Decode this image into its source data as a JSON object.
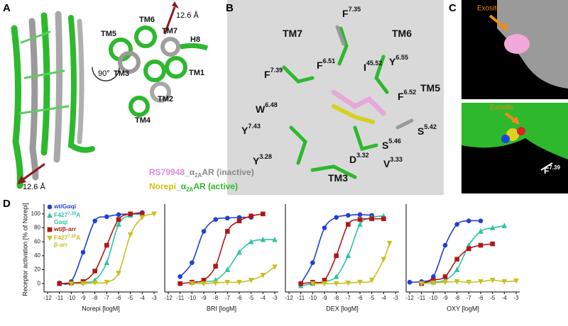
{
  "panels": {
    "A": {
      "label": "A",
      "distance_side": "12.6 Å",
      "rotation": "90°",
      "distance_top": "12.6 Å",
      "helices": [
        "TM6",
        "TM7",
        "H8",
        "TM5",
        "TM1",
        "TM3",
        "TM2",
        "TM4"
      ],
      "legend": [
        [
          "RS79948",
          "_α",
          "2A",
          "AR (inactive)"
        ],
        [
          "Norepi",
          "_α",
          "2A",
          "AR (active)"
        ]
      ]
    },
    "B": {
      "label": "B",
      "residues": [
        [
          "F",
          "7.35"
        ],
        [
          "TM7"
        ],
        [
          "TM6"
        ],
        [
          "F",
          "7.39"
        ],
        [
          "F",
          "6.51"
        ],
        [
          "I",
          "45.52"
        ],
        [
          "Y",
          "6.55"
        ],
        [
          "F",
          "6.52"
        ],
        [
          "TM5"
        ],
        [
          "W",
          "6.48"
        ],
        [
          "Y",
          "7.43"
        ],
        [
          "Y",
          "3.28"
        ],
        [
          "D",
          "3.32"
        ],
        [
          "V",
          "3.33"
        ],
        [
          "S",
          "5.46"
        ],
        [
          "S",
          "5.42"
        ],
        [
          "TM3"
        ]
      ]
    },
    "C": {
      "label": "C",
      "exosite_top": "Exosite",
      "exosite_bottom": "Exosite",
      "residue": [
        "F",
        "7.39"
      ]
    },
    "D": {
      "label": "D"
    }
  },
  "chart_data": [
    {
      "type": "dose_response",
      "ylabel": "Receptor activation [% of Norepi]",
      "xlabel": "Norepi [logM]",
      "xlim": [
        -12.3,
        -2.7
      ],
      "xticks": [
        -12,
        -11,
        -10,
        -9,
        -8,
        -7,
        -6,
        -5,
        -4,
        -3
      ],
      "ylim": [
        -12,
        110
      ],
      "yticks": [
        0,
        20,
        40,
        60,
        80,
        100
      ],
      "series": [
        {
          "name": [
            "wt/Gαqi"
          ],
          "color": "#1f3fd6",
          "marker": "circle",
          "x": [
            -11,
            -10,
            -9,
            -8,
            -7,
            -6,
            -5,
            -4
          ],
          "values": [
            1,
            3,
            45,
            90,
            96,
            99,
            100,
            102
          ]
        },
        {
          "name": [
            "F427",
            "7.39",
            "A",
            "Gαqi"
          ],
          "color": "#2ec4a0",
          "marker": "triangle-up",
          "x": [
            -11,
            -10,
            -9,
            -8,
            -7,
            -6,
            -5,
            -4
          ],
          "values": [
            0,
            1,
            2,
            5,
            30,
            85,
            98,
            100
          ]
        },
        {
          "name": [
            "wt/β-arr"
          ],
          "color": "#b01818",
          "marker": "square",
          "x": [
            -11,
            -10,
            -9,
            -8,
            -7,
            -6,
            -5,
            -4
          ],
          "values": [
            0,
            1,
            3,
            18,
            55,
            92,
            100,
            100
          ]
        },
        {
          "name": [
            "F427",
            "7.39",
            "A",
            "β-arr"
          ],
          "color": "#c8c020",
          "marker": "triangle-down",
          "x": [
            -10,
            -9,
            -8,
            -7,
            -6,
            -5,
            -4,
            -3
          ],
          "values": [
            0,
            0,
            1,
            2,
            15,
            70,
            95,
            100
          ]
        }
      ]
    },
    {
      "type": "dose_response",
      "xlabel": "BRI [logM]",
      "xlim": [
        -12.3,
        -2.7
      ],
      "xticks": [
        -12,
        -11,
        -10,
        -9,
        -8,
        -7,
        -6,
        -5,
        -4,
        -3
      ],
      "ylim": [
        -12,
        110
      ],
      "series": [
        {
          "color": "#1f3fd6",
          "marker": "circle",
          "x": [
            -11,
            -10,
            -9,
            -8,
            -7,
            -6,
            -5
          ],
          "values": [
            10,
            30,
            75,
            92,
            94,
            95,
            95
          ]
        },
        {
          "color": "#2ec4a0",
          "marker": "triangle-up",
          "x": [
            -10,
            -9,
            -8,
            -7,
            -6,
            -5,
            -4,
            -3
          ],
          "values": [
            2,
            3,
            5,
            20,
            45,
            60,
            63,
            63
          ]
        },
        {
          "color": "#b01818",
          "marker": "square",
          "x": [
            -11,
            -10,
            -9,
            -8,
            -7,
            -6,
            -5,
            -4
          ],
          "values": [
            0,
            2,
            5,
            25,
            75,
            90,
            97,
            100
          ]
        },
        {
          "color": "#c8c020",
          "marker": "triangle-down",
          "x": [
            -10,
            -9,
            -8,
            -7,
            -6,
            -5,
            -4,
            -3
          ],
          "values": [
            0,
            0,
            1,
            2,
            2,
            5,
            12,
            24
          ]
        }
      ]
    },
    {
      "type": "dose_response",
      "xlabel": "DEX [logM]",
      "xlim": [
        -12.3,
        -2.7
      ],
      "xticks": [
        -12,
        -11,
        -10,
        -9,
        -8,
        -7,
        -6,
        -5,
        -4,
        -3
      ],
      "ylim": [
        -12,
        110
      ],
      "series": [
        {
          "color": "#1f3fd6",
          "marker": "circle",
          "x": [
            -11,
            -10,
            -9,
            -8,
            -7,
            -6,
            -5
          ],
          "values": [
            0,
            30,
            80,
            95,
            98,
            99,
            98
          ]
        },
        {
          "color": "#2ec4a0",
          "marker": "triangle-up",
          "x": [
            -11,
            -10,
            -9,
            -8,
            -7,
            -6,
            -5,
            -4
          ],
          "values": [
            -3,
            0,
            3,
            10,
            40,
            85,
            95,
            97
          ]
        },
        {
          "color": "#b01818",
          "marker": "square",
          "x": [
            -11,
            -10,
            -9,
            -8,
            -7,
            -6,
            -5,
            -4
          ],
          "values": [
            0,
            2,
            5,
            40,
            85,
            92,
            93,
            93
          ]
        },
        {
          "color": "#c8c020",
          "marker": "triangle-down",
          "x": [
            -10,
            -9,
            -8,
            -7,
            -6,
            -5,
            -4,
            -3.5
          ],
          "values": [
            0,
            0,
            0,
            1,
            2,
            5,
            35,
            58
          ]
        }
      ]
    },
    {
      "type": "dose_response",
      "xlabel": "OXY [logM]",
      "xlim": [
        -12.3,
        -2.7
      ],
      "xticks": [
        -12,
        -11,
        -10,
        -9,
        -8,
        -7,
        -6,
        -5,
        -4,
        -3
      ],
      "ylim": [
        -12,
        110
      ],
      "series": [
        {
          "color": "#1f3fd6",
          "marker": "circle",
          "x": [
            -12,
            -11,
            -10,
            -9,
            -8,
            -7,
            -6
          ],
          "values": [
            2,
            3,
            10,
            55,
            85,
            90,
            90
          ]
        },
        {
          "color": "#2ec4a0",
          "marker": "triangle-up",
          "x": [
            -11,
            -10,
            -9,
            -8,
            -7,
            -6,
            -5,
            -4
          ],
          "values": [
            0,
            2,
            5,
            20,
            55,
            75,
            80,
            83
          ]
        },
        {
          "color": "#b01818",
          "marker": "square",
          "x": [
            -11,
            -10,
            -9,
            -8,
            -7,
            -6,
            -5
          ],
          "values": [
            0,
            5,
            10,
            35,
            50,
            55,
            57
          ]
        },
        {
          "color": "#c8c020",
          "marker": "triangle-down",
          "x": [
            -11,
            -10,
            -9,
            -8,
            -7,
            -6,
            -5,
            -4,
            -3
          ],
          "values": [
            0,
            1,
            2,
            3,
            2,
            3,
            5,
            3,
            4
          ]
        }
      ]
    }
  ]
}
